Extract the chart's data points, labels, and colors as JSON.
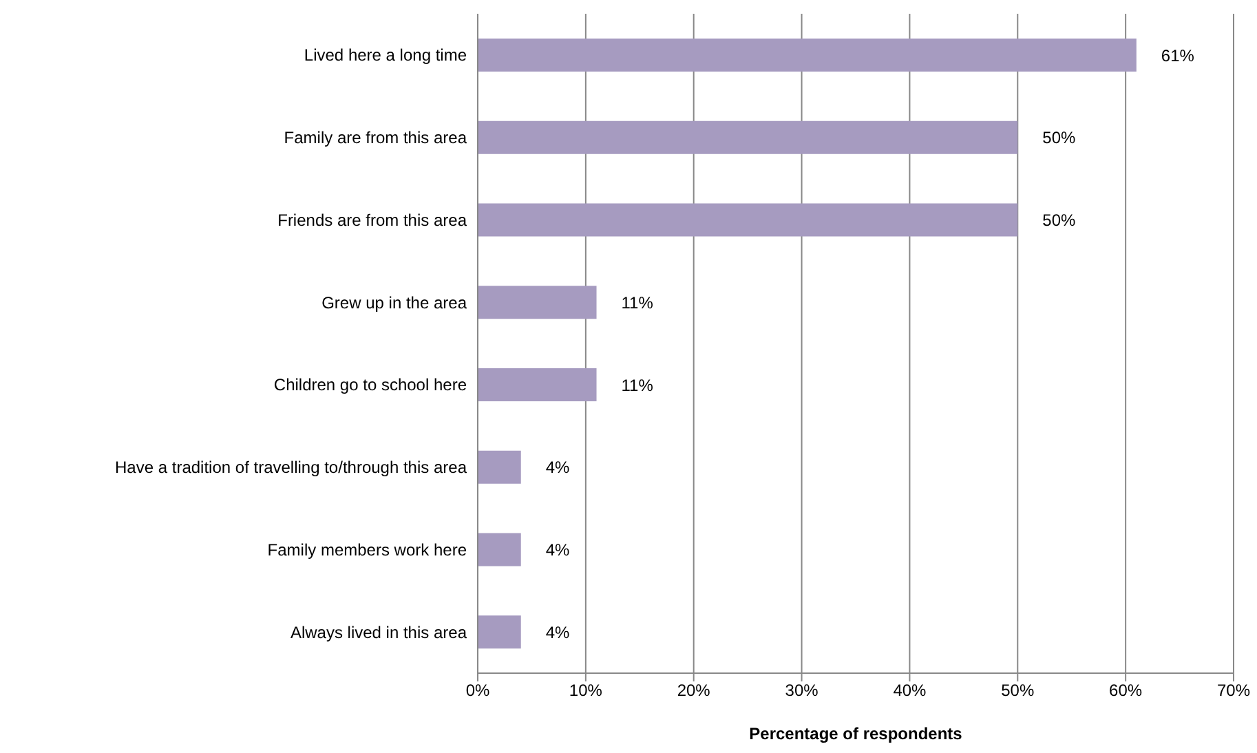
{
  "chart_data": {
    "type": "bar",
    "orientation": "horizontal",
    "xlabel": "Percentage of respondents",
    "categories": [
      "Lived here a long time",
      "Family are from this area",
      "Friends are from this area",
      "Grew up in the area",
      "Children go to school here",
      "Have a tradition of travelling to/through this area",
      "Family members work here",
      "Always lived in this area"
    ],
    "values": [
      61,
      50,
      50,
      11,
      11,
      4,
      4,
      4
    ],
    "value_labels": [
      "61%",
      "50%",
      "50%",
      "11%",
      "11%",
      "4%",
      "4%",
      "4%"
    ],
    "color": "#a69bc0",
    "xlim": [
      0,
      70
    ],
    "xticks": [
      {
        "value": 0,
        "label": "0%"
      },
      {
        "value": 10,
        "label": "10%"
      },
      {
        "value": 20,
        "label": "20%"
      },
      {
        "value": 30,
        "label": "30%"
      },
      {
        "value": 40,
        "label": "40%"
      },
      {
        "value": 50,
        "label": "50%"
      },
      {
        "value": 60,
        "label": "60%"
      },
      {
        "value": 70,
        "label": "70%"
      }
    ],
    "grid": "x",
    "legend": false
  }
}
